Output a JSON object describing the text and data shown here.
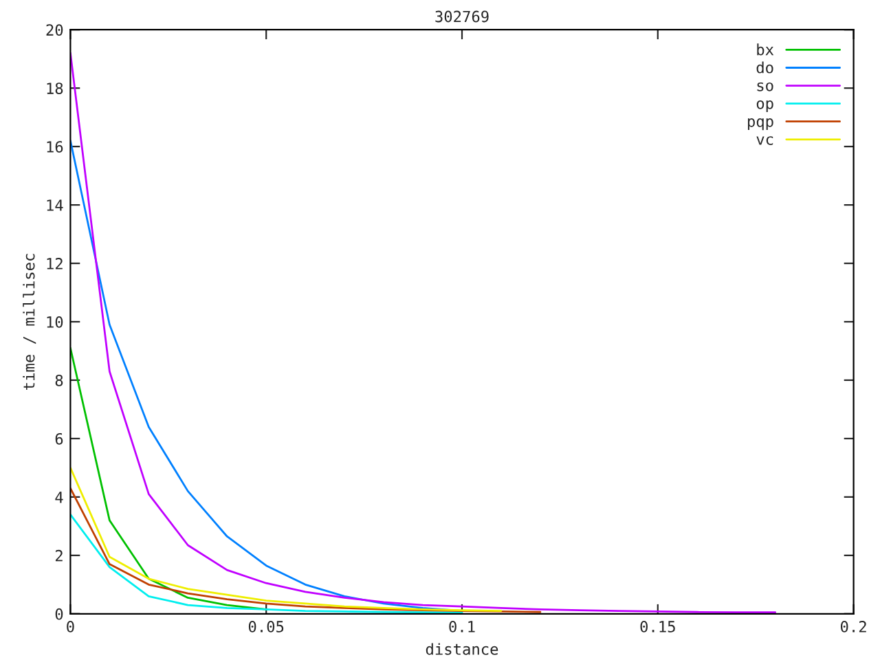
{
  "chart_data": {
    "type": "line",
    "title": "302769",
    "xlabel": "distance",
    "ylabel": "time / millisec",
    "x": [
      0,
      0.01,
      0.02,
      0.03,
      0.04,
      0.05,
      0.06,
      0.07,
      0.08,
      0.09,
      0.1,
      0.11,
      0.12,
      0.13,
      0.14,
      0.15,
      0.16,
      0.17,
      0.18
    ],
    "series": [
      {
        "name": "bx",
        "color": "#00c000",
        "values": [
          9.1,
          3.2,
          1.2,
          0.55,
          0.3,
          0.15,
          null,
          null,
          null,
          null,
          null,
          null,
          null,
          null,
          null,
          null,
          null,
          null,
          null
        ]
      },
      {
        "name": "do",
        "color": "#0080ff",
        "values": [
          16.2,
          9.9,
          6.4,
          4.2,
          2.65,
          1.65,
          1.0,
          0.6,
          0.35,
          0.2,
          0.1,
          null,
          null,
          null,
          null,
          null,
          null,
          null,
          null
        ]
      },
      {
        "name": "so",
        "color": "#c000ff",
        "values": [
          19.2,
          8.3,
          4.1,
          2.35,
          1.5,
          1.05,
          0.75,
          0.55,
          0.4,
          0.3,
          0.25,
          0.2,
          0.15,
          0.12,
          0.1,
          0.08,
          0.06,
          0.05,
          0.05
        ]
      },
      {
        "name": "op",
        "color": "#00eeee",
        "values": [
          3.4,
          1.6,
          0.6,
          0.3,
          0.2,
          0.15,
          0.1,
          0.08,
          0.06,
          0.05,
          0.04,
          null,
          null,
          null,
          null,
          null,
          null,
          null,
          null
        ]
      },
      {
        "name": "pqp",
        "color": "#c04000",
        "values": [
          4.3,
          1.7,
          1.0,
          0.7,
          0.5,
          0.35,
          0.25,
          0.2,
          0.15,
          0.12,
          0.1,
          0.08,
          0.06,
          null,
          null,
          null,
          null,
          null,
          null
        ]
      },
      {
        "name": "vc",
        "color": "#eeee00",
        "values": [
          5.0,
          1.95,
          1.2,
          0.85,
          0.65,
          0.45,
          0.35,
          0.25,
          0.2,
          0.15,
          0.12,
          0.1,
          null,
          null,
          null,
          null,
          null,
          null,
          null
        ]
      }
    ],
    "xlim": [
      0,
      0.2
    ],
    "ylim": [
      0,
      20
    ],
    "xticks": [
      0,
      0.05,
      0.1,
      0.15,
      0.2
    ],
    "yticks": [
      0,
      2,
      4,
      6,
      8,
      10,
      12,
      14,
      16,
      18,
      20
    ],
    "legend": "top right",
    "grid": false
  }
}
